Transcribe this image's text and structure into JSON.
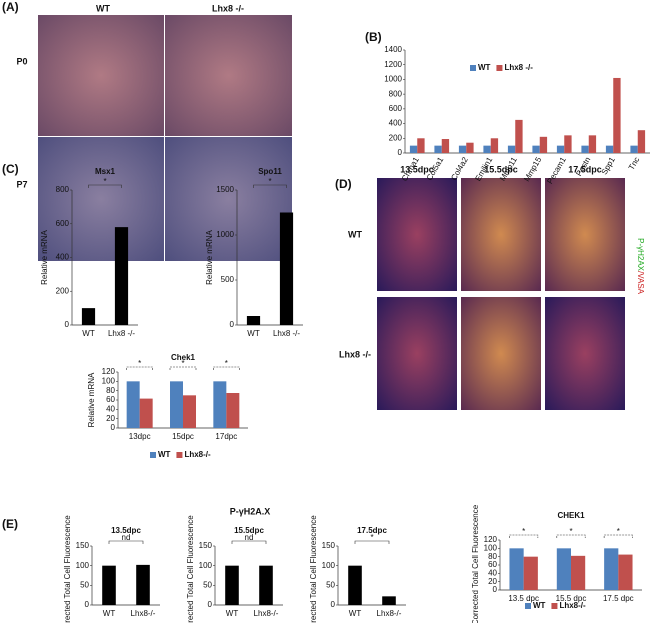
{
  "panel_labels": [
    "(A)",
    "(B)",
    "(C)",
    "(D)",
    "(E)"
  ],
  "panel_a": {
    "columns": [
      "WT",
      "Lhx8 -/-"
    ],
    "rows": [
      "P0",
      "P7"
    ]
  },
  "panel_d": {
    "columns": [
      "13.5dpc",
      "15.5dpc",
      "17.5dpc"
    ],
    "rows": [
      "WT",
      "Lhx8 -/-"
    ],
    "stain_green": "P-γH2AX",
    "stain_red": "/VASA"
  },
  "panel_e": {
    "group_title": "P-γH2A.X"
  },
  "chart_data": [
    {
      "type": "bar",
      "categories": [
        "Chrna1",
        "Col5a1",
        "Col4a2",
        "Emilin1",
        "Mmp11",
        "Mmp15",
        "Pecam1",
        "Postn",
        "Spp1",
        "Tnc"
      ],
      "series": [
        {
          "name": "WT",
          "color": "#4f81bd",
          "values": [
            100,
            100,
            100,
            100,
            100,
            100,
            100,
            100,
            100,
            100
          ]
        },
        {
          "name": "Lhx8 -/-",
          "color": "#c0504d",
          "values": [
            200,
            190,
            140,
            200,
            450,
            220,
            240,
            240,
            1020,
            310
          ]
        }
      ],
      "ylim": [
        0,
        1400
      ],
      "yticks": [
        0,
        200,
        400,
        600,
        800,
        1000,
        1200,
        1400
      ]
    },
    {
      "type": "bar",
      "title": "Msx1",
      "y_label": "Relative mRNA",
      "categories": [
        "WT",
        "Lhx8 -/-"
      ],
      "values": [
        100,
        580
      ],
      "color": "#000000",
      "ylim": [
        0,
        800
      ],
      "yticks": [
        0,
        200,
        400,
        600,
        800
      ],
      "annotations": [
        "*"
      ]
    },
    {
      "type": "bar",
      "title": "Spo11",
      "y_label": "Relative mRNA",
      "categories": [
        "WT",
        "Lhx8 -/-"
      ],
      "values": [
        100,
        1250
      ],
      "color": "#000000",
      "ylim": [
        0,
        1500
      ],
      "yticks": [
        0,
        500,
        1000,
        1500
      ],
      "annotations": [
        "*"
      ]
    },
    {
      "type": "bar",
      "title": "Chek1",
      "y_label": "Relative mRNA",
      "categories": [
        "13dpc",
        "15dpc",
        "17dpc"
      ],
      "series": [
        {
          "name": "WT",
          "color": "#4f81bd",
          "values": [
            100,
            100,
            100
          ]
        },
        {
          "name": "Lhx8-/-",
          "color": "#c0504d",
          "values": [
            63,
            70,
            75
          ]
        }
      ],
      "ylim": [
        0,
        120
      ],
      "yticks": [
        0,
        20,
        40,
        60,
        80,
        100,
        120
      ],
      "annotations": [
        "*",
        "*",
        "*"
      ]
    },
    {
      "type": "bar",
      "title": "13.5dpc",
      "y_label": "Corrected Total Cell Fluorescence",
      "categories": [
        "WT",
        "Lhx8-/-"
      ],
      "values": [
        100,
        102
      ],
      "color": "#000000",
      "ylim": [
        0,
        150
      ],
      "yticks": [
        0,
        50,
        100,
        150
      ],
      "annotations": [
        "nd"
      ]
    },
    {
      "type": "bar",
      "title": "15.5dpc",
      "y_label": "Corrected Total Cell Fluorescence",
      "categories": [
        "WT",
        "Lhx8-/-"
      ],
      "values": [
        100,
        100
      ],
      "color": "#000000",
      "ylim": [
        0,
        150
      ],
      "yticks": [
        0,
        50,
        100,
        150
      ],
      "annotations": [
        "nd"
      ]
    },
    {
      "type": "bar",
      "title": "17.5dpc",
      "y_label": "Corrected Total Cell Fluorescence",
      "categories": [
        "WT",
        "Lhx8-/-"
      ],
      "values": [
        100,
        22
      ],
      "color": "#000000",
      "ylim": [
        0,
        150
      ],
      "yticks": [
        0,
        50,
        100,
        150
      ],
      "annotations": [
        "*"
      ]
    },
    {
      "type": "bar",
      "title": "CHEK1",
      "y_label": "Corrected Total Cell Fluorescence",
      "categories": [
        "13.5 dpc",
        "15.5 dpc",
        "17.5 dpc"
      ],
      "series": [
        {
          "name": "WT",
          "color": "#4f81bd",
          "values": [
            100,
            100,
            100
          ]
        },
        {
          "name": "Lhx8-/-",
          "color": "#c0504d",
          "values": [
            80,
            82,
            85
          ]
        }
      ],
      "ylim": [
        0,
        120
      ],
      "yticks": [
        0,
        20,
        40,
        60,
        80,
        100,
        120
      ],
      "annotations": [
        "*",
        "*",
        "*"
      ]
    }
  ]
}
